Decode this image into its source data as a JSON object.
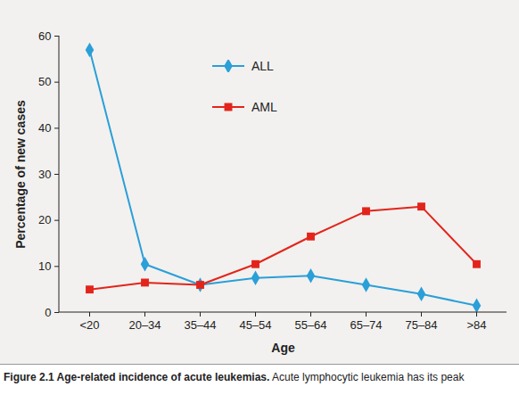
{
  "chart_data": {
    "type": "line",
    "title": "Figure 2.1 Age-related incidence of acute leukemias.",
    "subtitle": "Acute lymphocytic leukemia has its peak",
    "x_label": "Age",
    "y_label": "Percentage of new cases",
    "categories": [
      "<20",
      "20–34",
      "35–44",
      "45–54",
      "55–64",
      "65–74",
      "75–84",
      ">84"
    ],
    "series": [
      {
        "name": "ALL",
        "color": "#2a9fd8",
        "marker": "diamond",
        "values": [
          57,
          10.5,
          6,
          7.5,
          8,
          6,
          4,
          1.5
        ]
      },
      {
        "name": "AML",
        "color": "#e3241b",
        "marker": "square",
        "values": [
          5,
          6.5,
          6,
          10.5,
          16.5,
          22,
          23,
          10.5
        ]
      }
    ],
    "ylim": [
      0,
      60
    ],
    "yticks": [
      0,
      10,
      20,
      30,
      40,
      50,
      60
    ],
    "legend": "top"
  }
}
